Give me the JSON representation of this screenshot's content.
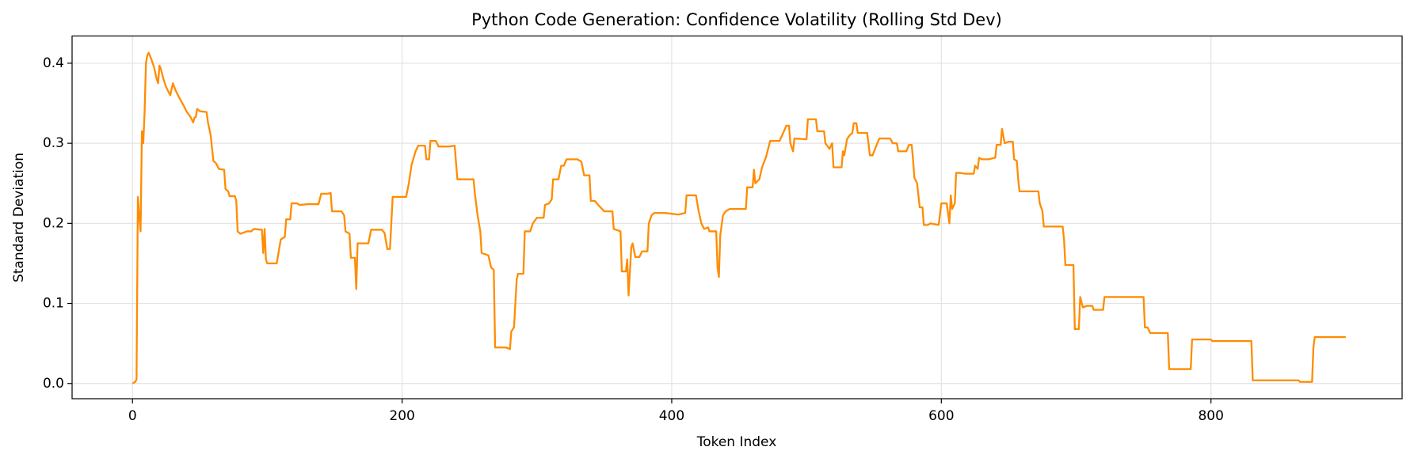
{
  "chart_data": {
    "type": "line",
    "title": "Python Code Generation: Confidence Volatility (Rolling Std Dev)",
    "x_label": "Token Index",
    "y_label": "Standard Deviation",
    "xlim": [
      -44.8,
      941.8
    ],
    "ylim": [
      -0.019,
      0.434
    ],
    "xticks": [
      0,
      200,
      400,
      600,
      800
    ],
    "yticks": [
      {
        "value": 0,
        "label": "0.0"
      },
      0.1,
      0.2,
      0.3,
      0.4
    ],
    "grid": true,
    "x": [
      0,
      2,
      3,
      4,
      5,
      6,
      7,
      8,
      9,
      10,
      11,
      12,
      14,
      16,
      18,
      19,
      20,
      21,
      23,
      25,
      28,
      30,
      32,
      35,
      38,
      40,
      43,
      45,
      46,
      47,
      48,
      50,
      55,
      56,
      58,
      60,
      62,
      64,
      68,
      69,
      71,
      72,
      76,
      77,
      78,
      80,
      85,
      88,
      90,
      96,
      97,
      98,
      99,
      100,
      107,
      108,
      110,
      113,
      114,
      117,
      118,
      122,
      124,
      130,
      135,
      138,
      140,
      145,
      147,
      148,
      155,
      157,
      158,
      161,
      162,
      165,
      166,
      167,
      175,
      177,
      185,
      187,
      189,
      191,
      192,
      193,
      203,
      205,
      207,
      210,
      212,
      217,
      218,
      220,
      221,
      225,
      227,
      235,
      239,
      241,
      250,
      253,
      254,
      256,
      258,
      259,
      264,
      266,
      268,
      269,
      277,
      280,
      281,
      283,
      285,
      286,
      290,
      291,
      295,
      297,
      300,
      305,
      306,
      309,
      311,
      312,
      316,
      318,
      320,
      322,
      330,
      333,
      335,
      339,
      340,
      343,
      346,
      350,
      356,
      357,
      362,
      363,
      366,
      367,
      368,
      370,
      371,
      373,
      376,
      378,
      382,
      383,
      385,
      387,
      395,
      405,
      410,
      411,
      418,
      420,
      422,
      424,
      427,
      428,
      433,
      434,
      435,
      436,
      438,
      440,
      443,
      455,
      456,
      460,
      461,
      462,
      465,
      467,
      470,
      473,
      480,
      483,
      485,
      487,
      488,
      490,
      491,
      500,
      501,
      507,
      508,
      513,
      514,
      517,
      519,
      520,
      526,
      527,
      528,
      530,
      532,
      534,
      535,
      537,
      538,
      545,
      547,
      549,
      552,
      554,
      562,
      564,
      567,
      568,
      574,
      576,
      578,
      579,
      580,
      582,
      584,
      586,
      587,
      590,
      592,
      598,
      600,
      604,
      606,
      607,
      608,
      610,
      611,
      614,
      618,
      624,
      625,
      627,
      628,
      630,
      635,
      640,
      641,
      644,
      645,
      647,
      650,
      653,
      654,
      656,
      657,
      658,
      665,
      672,
      673,
      675,
      676,
      690,
      691,
      692,
      698,
      699,
      702,
      703,
      705,
      708,
      712,
      713,
      720,
      721,
      750,
      751,
      753,
      755,
      768,
      769,
      785,
      786,
      800,
      801,
      830,
      831,
      865,
      866,
      875,
      876,
      877,
      900
    ],
    "series": [
      {
        "name": "Rolling Std Dev",
        "color": "#ff8c00",
        "values": [
          0.0,
          0.002,
          0.005,
          0.233,
          0.21,
          0.19,
          0.315,
          0.3,
          0.34,
          0.4,
          0.41,
          0.413,
          0.405,
          0.395,
          0.38,
          0.375,
          0.397,
          0.393,
          0.38,
          0.37,
          0.36,
          0.375,
          0.366,
          0.356,
          0.347,
          0.34,
          0.333,
          0.326,
          0.332,
          0.333,
          0.343,
          0.34,
          0.339,
          0.326,
          0.31,
          0.278,
          0.275,
          0.268,
          0.267,
          0.243,
          0.24,
          0.234,
          0.234,
          0.228,
          0.19,
          0.187,
          0.19,
          0.19,
          0.193,
          0.192,
          0.163,
          0.193,
          0.155,
          0.15,
          0.15,
          0.16,
          0.18,
          0.183,
          0.205,
          0.205,
          0.225,
          0.225,
          0.223,
          0.224,
          0.224,
          0.224,
          0.237,
          0.237,
          0.238,
          0.215,
          0.215,
          0.21,
          0.19,
          0.187,
          0.157,
          0.157,
          0.118,
          0.175,
          0.175,
          0.192,
          0.192,
          0.188,
          0.168,
          0.168,
          0.2,
          0.233,
          0.233,
          0.25,
          0.273,
          0.29,
          0.297,
          0.297,
          0.28,
          0.28,
          0.303,
          0.303,
          0.296,
          0.296,
          0.297,
          0.255,
          0.255,
          0.255,
          0.237,
          0.21,
          0.19,
          0.163,
          0.16,
          0.145,
          0.142,
          0.045,
          0.045,
          0.043,
          0.065,
          0.07,
          0.13,
          0.137,
          0.137,
          0.19,
          0.19,
          0.2,
          0.207,
          0.207,
          0.223,
          0.225,
          0.23,
          0.255,
          0.255,
          0.272,
          0.272,
          0.28,
          0.28,
          0.277,
          0.26,
          0.26,
          0.228,
          0.228,
          0.222,
          0.215,
          0.215,
          0.193,
          0.19,
          0.14,
          0.14,
          0.155,
          0.11,
          0.17,
          0.175,
          0.158,
          0.158,
          0.165,
          0.165,
          0.2,
          0.21,
          0.213,
          0.213,
          0.211,
          0.213,
          0.235,
          0.235,
          0.215,
          0.2,
          0.193,
          0.195,
          0.19,
          0.19,
          0.145,
          0.133,
          0.185,
          0.21,
          0.215,
          0.218,
          0.218,
          0.245,
          0.245,
          0.267,
          0.25,
          0.255,
          0.27,
          0.283,
          0.303,
          0.303,
          0.314,
          0.322,
          0.322,
          0.3,
          0.29,
          0.306,
          0.305,
          0.33,
          0.33,
          0.315,
          0.315,
          0.3,
          0.293,
          0.3,
          0.27,
          0.27,
          0.29,
          0.285,
          0.305,
          0.31,
          0.313,
          0.325,
          0.325,
          0.313,
          0.313,
          0.285,
          0.285,
          0.298,
          0.306,
          0.306,
          0.3,
          0.3,
          0.29,
          0.29,
          0.298,
          0.298,
          0.28,
          0.257,
          0.25,
          0.22,
          0.22,
          0.198,
          0.198,
          0.2,
          0.198,
          0.225,
          0.225,
          0.2,
          0.235,
          0.218,
          0.225,
          0.263,
          0.263,
          0.262,
          0.262,
          0.272,
          0.268,
          0.282,
          0.28,
          0.28,
          0.282,
          0.298,
          0.298,
          0.318,
          0.3,
          0.302,
          0.302,
          0.28,
          0.278,
          0.255,
          0.24,
          0.24,
          0.24,
          0.225,
          0.215,
          0.196,
          0.196,
          0.18,
          0.148,
          0.148,
          0.068,
          0.068,
          0.108,
          0.095,
          0.097,
          0.097,
          0.092,
          0.092,
          0.108,
          0.108,
          0.07,
          0.07,
          0.063,
          0.063,
          0.018,
          0.018,
          0.055,
          0.055,
          0.053,
          0.053,
          0.004,
          0.004,
          0.002,
          0.002,
          0.045,
          0.058,
          0.058
        ]
      }
    ]
  }
}
